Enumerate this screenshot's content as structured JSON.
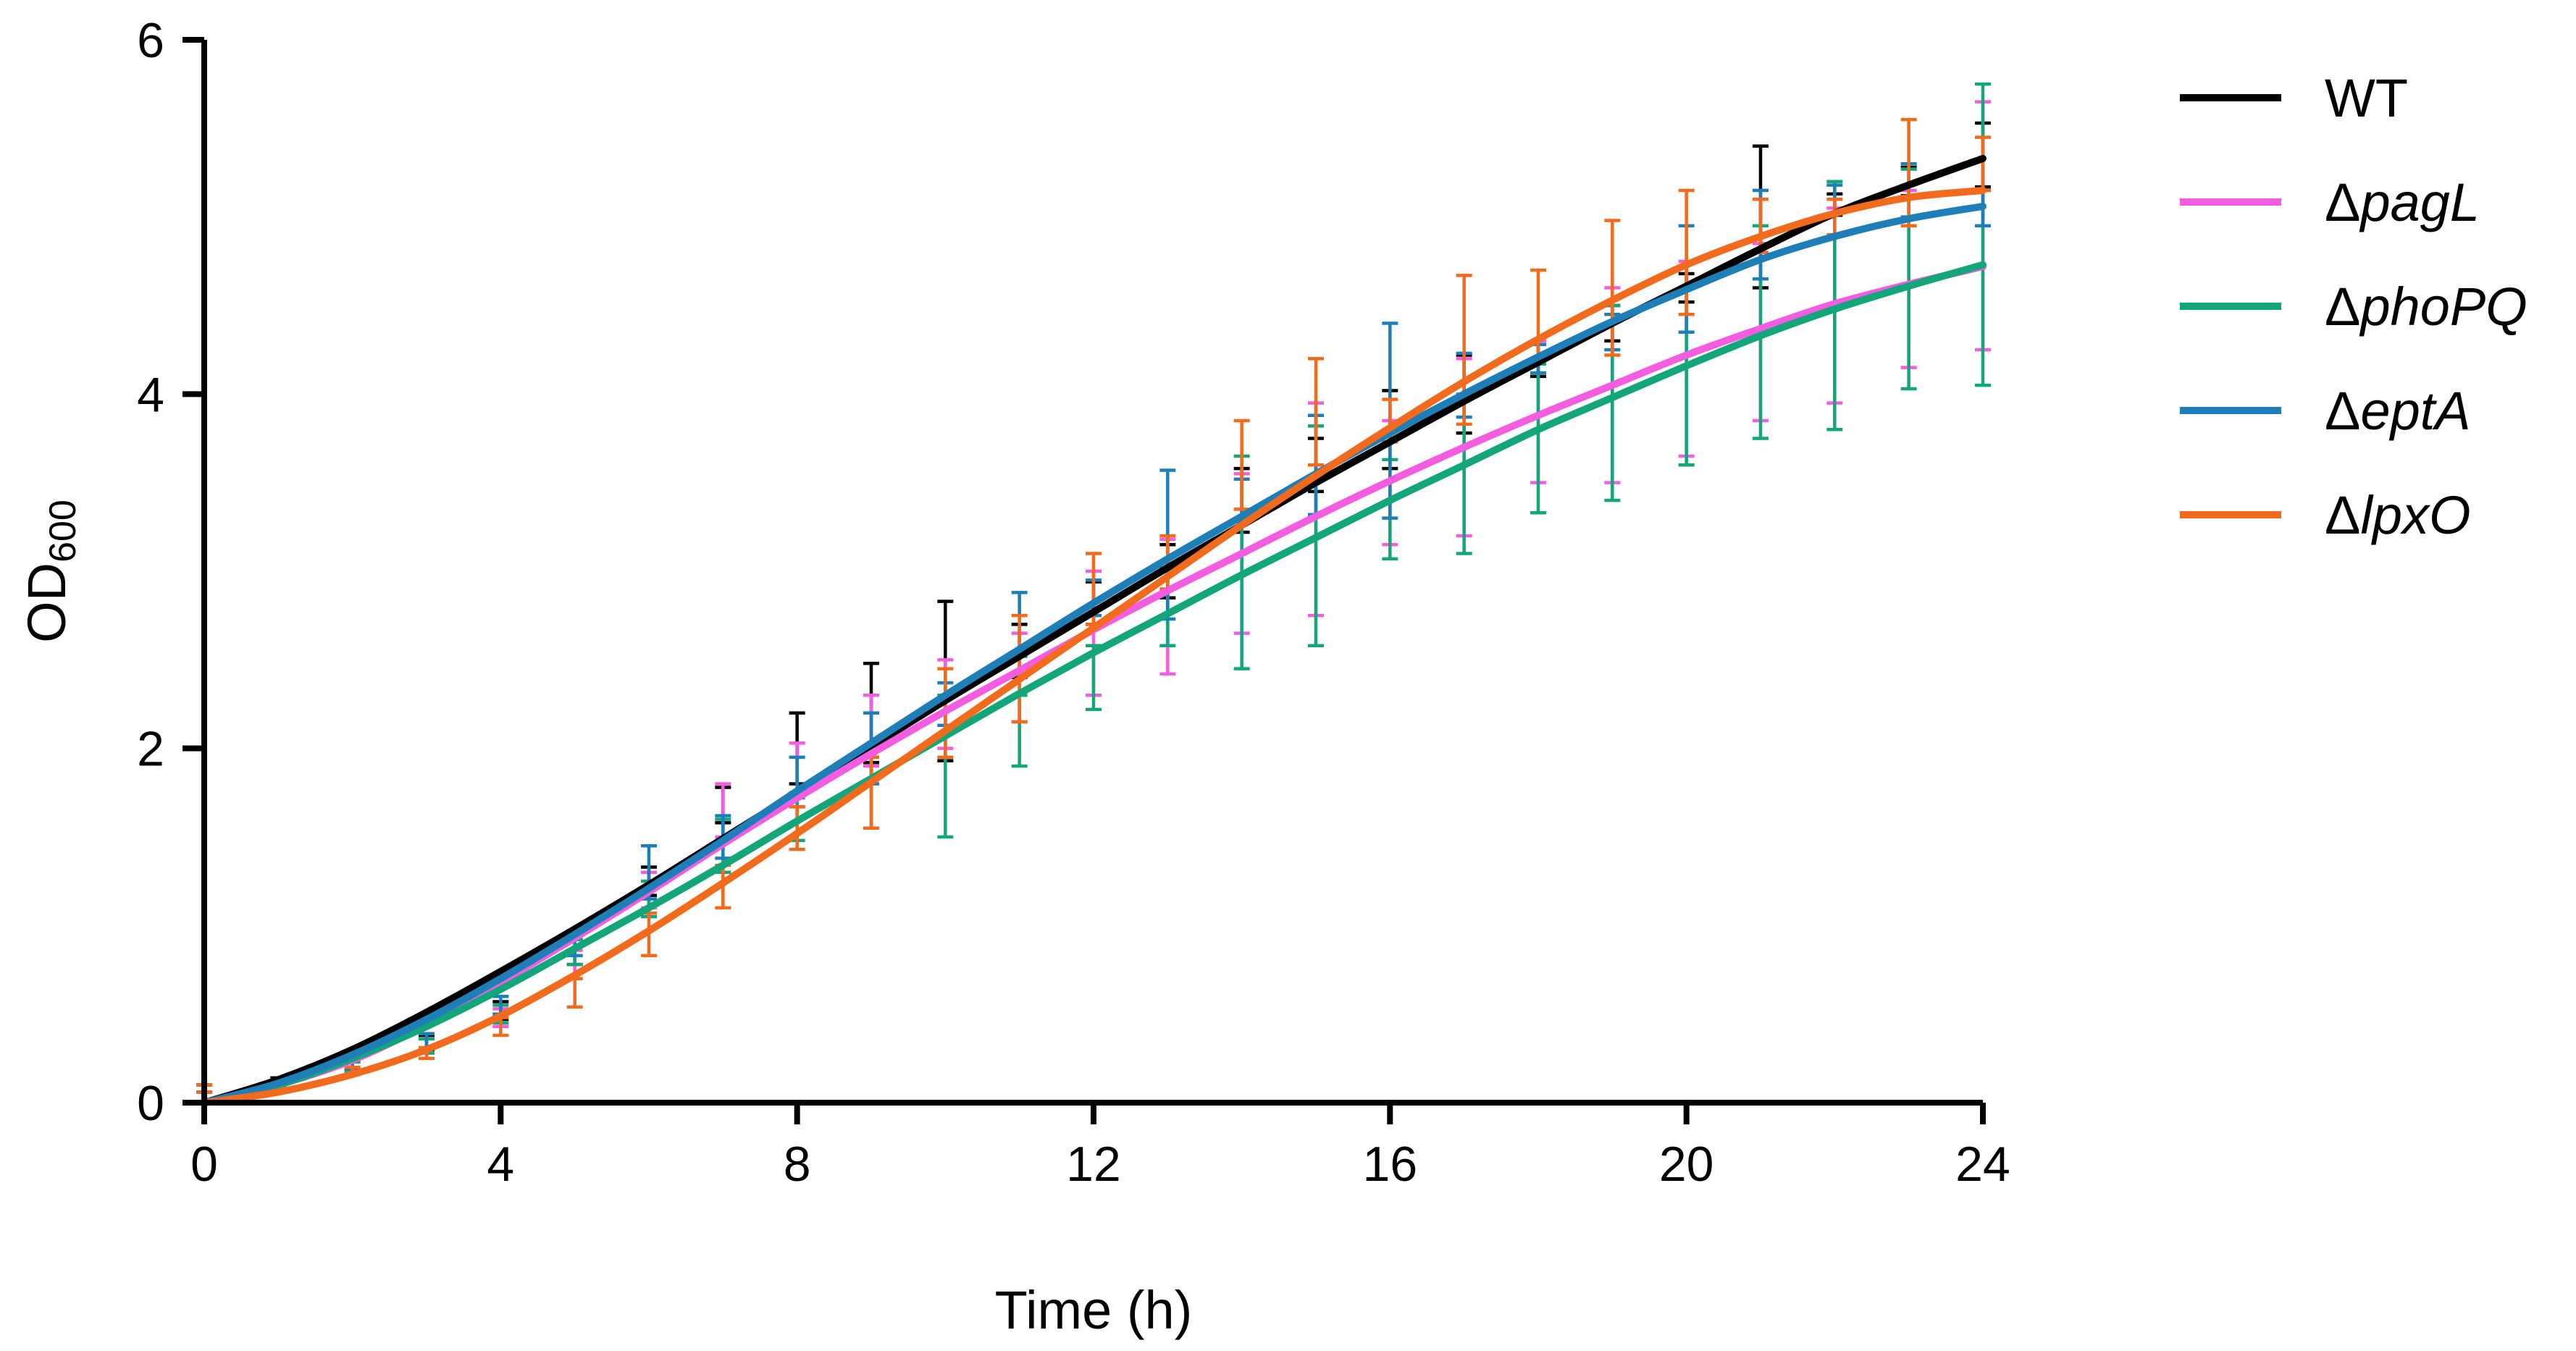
{
  "chart_data": {
    "type": "line",
    "title": "",
    "xlabel": "Time (h)",
    "ylabel": {
      "main": "OD",
      "subscript": "600"
    },
    "xlim": [
      0,
      24
    ],
    "ylim": [
      0,
      6
    ],
    "x_ticks": [
      "0",
      "4",
      "8",
      "12",
      "16",
      "20",
      "24"
    ],
    "y_ticks": [
      "0",
      "2",
      "4",
      "6"
    ],
    "grid": false,
    "legend_position": "right",
    "x": [
      0,
      1,
      2,
      3,
      4,
      5,
      6,
      7,
      8,
      9,
      10,
      11,
      12,
      13,
      14,
      15,
      16,
      17,
      18,
      19,
      20,
      21,
      22,
      23,
      24
    ],
    "series": [
      {
        "name": "WT",
        "prefix": "",
        "italic": "",
        "text": "WT",
        "color": "#000000",
        "fit": [
          0.0,
          0.13,
          0.3,
          0.51,
          0.74,
          0.98,
          1.23,
          1.49,
          1.75,
          2.01,
          2.27,
          2.52,
          2.77,
          3.02,
          3.26,
          3.5,
          3.73,
          3.96,
          4.18,
          4.4,
          4.61,
          4.82,
          5.02,
          5.18,
          5.33
        ],
        "mean": [
          0.08,
          0.12,
          0.22,
          0.34,
          0.52,
          0.85,
          1.25,
          1.68,
          2.0,
          2.2,
          2.38,
          2.55,
          2.82,
          3.0,
          3.4,
          3.6,
          3.8,
          4.0,
          4.2,
          4.4,
          4.6,
          5.0,
          5.07,
          5.2,
          5.35
        ],
        "error": [
          0.02,
          0.02,
          0.03,
          0.04,
          0.05,
          0.07,
          0.08,
          0.1,
          0.2,
          0.28,
          0.45,
          0.15,
          0.12,
          0.15,
          0.18,
          0.15,
          0.22,
          0.22,
          0.1,
          0.1,
          0.08,
          0.4,
          0.06,
          0.08,
          0.18
        ]
      },
      {
        "name": "ΔpagL",
        "prefix": "Δ",
        "italic": "pagL",
        "text": "",
        "color": "#F45CE1",
        "fit": [
          0.0,
          0.1,
          0.24,
          0.44,
          0.68,
          0.93,
          1.19,
          1.46,
          1.72,
          1.97,
          2.21,
          2.44,
          2.67,
          2.89,
          3.1,
          3.31,
          3.51,
          3.7,
          3.88,
          4.05,
          4.22,
          4.37,
          4.51,
          4.62,
          4.72
        ],
        "mean": [
          0.08,
          0.1,
          0.2,
          0.32,
          0.48,
          0.78,
          1.2,
          1.65,
          1.85,
          2.1,
          2.25,
          2.4,
          2.65,
          2.8,
          3.1,
          3.35,
          3.5,
          3.7,
          3.9,
          4.05,
          4.2,
          4.35,
          4.5,
          4.65,
          4.95
        ],
        "error": [
          0.02,
          0.02,
          0.03,
          0.04,
          0.05,
          0.08,
          0.1,
          0.15,
          0.18,
          0.2,
          0.25,
          0.25,
          0.35,
          0.38,
          0.45,
          0.6,
          0.35,
          0.5,
          0.4,
          0.55,
          0.55,
          0.5,
          0.55,
          0.5,
          0.7
        ]
      },
      {
        "name": "ΔphoPQ",
        "prefix": "Δ",
        "italic": "phoPQ",
        "text": "",
        "color": "#13A67B",
        "fit": [
          0.0,
          0.1,
          0.25,
          0.43,
          0.64,
          0.87,
          1.1,
          1.34,
          1.59,
          1.83,
          2.07,
          2.31,
          2.54,
          2.76,
          2.98,
          3.19,
          3.4,
          3.6,
          3.8,
          3.98,
          4.16,
          4.33,
          4.48,
          4.61,
          4.73
        ],
        "mean": [
          0.08,
          0.1,
          0.2,
          0.32,
          0.5,
          0.85,
          1.15,
          1.45,
          1.6,
          1.75,
          1.9,
          2.1,
          2.4,
          2.8,
          3.05,
          3.2,
          3.35,
          3.55,
          3.75,
          3.95,
          4.1,
          4.35,
          4.5,
          4.65,
          4.9
        ],
        "error": [
          0.02,
          0.02,
          0.03,
          0.04,
          0.05,
          0.07,
          0.1,
          0.15,
          0.12,
          0.2,
          0.4,
          0.2,
          0.18,
          0.22,
          0.6,
          0.62,
          0.28,
          0.45,
          0.42,
          0.55,
          0.5,
          0.6,
          0.7,
          0.62,
          0.85
        ]
      },
      {
        "name": "ΔeptA",
        "prefix": "Δ",
        "italic": "eptA",
        "text": "",
        "color": "#1E7EB8",
        "fit": [
          0.0,
          0.11,
          0.27,
          0.47,
          0.7,
          0.95,
          1.21,
          1.48,
          1.76,
          2.03,
          2.3,
          2.56,
          2.82,
          3.07,
          3.31,
          3.55,
          3.78,
          4.0,
          4.21,
          4.41,
          4.59,
          4.76,
          4.89,
          4.99,
          5.06
        ],
        "mean": [
          0.08,
          0.11,
          0.22,
          0.35,
          0.55,
          0.9,
          1.3,
          1.5,
          1.85,
          2.0,
          2.25,
          2.7,
          2.85,
          3.15,
          3.4,
          3.6,
          3.85,
          4.05,
          4.2,
          4.35,
          4.65,
          4.9,
          5.1,
          5.15,
          5.05
        ],
        "error": [
          0.02,
          0.02,
          0.03,
          0.04,
          0.05,
          0.07,
          0.15,
          0.12,
          0.1,
          0.2,
          0.12,
          0.18,
          0.1,
          0.42,
          0.12,
          0.28,
          0.55,
          0.18,
          0.08,
          0.1,
          0.3,
          0.25,
          0.08,
          0.15,
          0.1
        ]
      },
      {
        "name": "ΔlpxO",
        "prefix": "Δ",
        "italic": "lpxO",
        "text": "",
        "color": "#F26A1B",
        "fit": [
          0.0,
          0.06,
          0.16,
          0.3,
          0.49,
          0.72,
          0.97,
          1.24,
          1.52,
          1.81,
          2.1,
          2.39,
          2.68,
          2.97,
          3.26,
          3.54,
          3.81,
          4.07,
          4.31,
          4.53,
          4.73,
          4.89,
          5.02,
          5.11,
          5.15
        ],
        "mean": [
          0.08,
          0.1,
          0.18,
          0.28,
          0.43,
          0.62,
          0.95,
          1.22,
          1.55,
          1.75,
          2.2,
          2.45,
          2.9,
          3.05,
          3.6,
          3.9,
          3.85,
          4.25,
          4.45,
          4.6,
          4.8,
          4.95,
          5.0,
          5.25,
          5.3
        ],
        "error": [
          0.02,
          0.02,
          0.02,
          0.03,
          0.05,
          0.08,
          0.12,
          0.12,
          0.12,
          0.2,
          0.25,
          0.3,
          0.2,
          0.15,
          0.25,
          0.3,
          0.12,
          0.42,
          0.25,
          0.38,
          0.35,
          0.15,
          0.1,
          0.3,
          0.15
        ]
      }
    ]
  }
}
